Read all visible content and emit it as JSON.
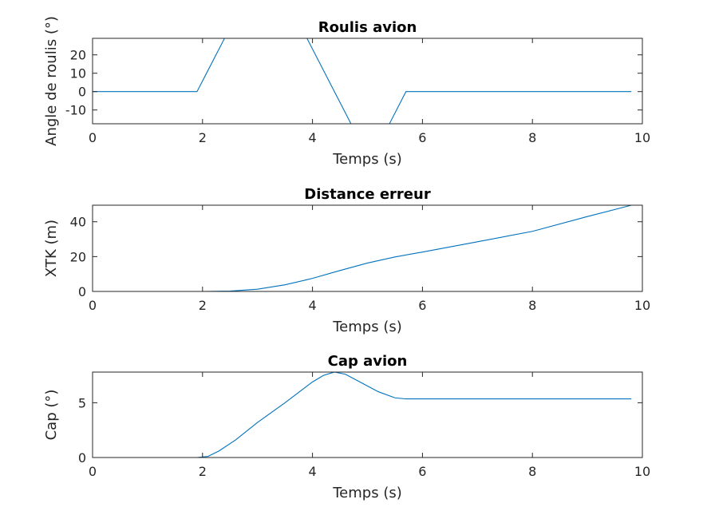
{
  "chart_data": [
    {
      "type": "line",
      "title": "Roulis avion",
      "xlabel": "Temps (s)",
      "ylabel": "Angle de roulis (°)",
      "xlim": [
        0,
        10
      ],
      "ylim": [
        -17.5,
        29
      ],
      "xticks": [
        "0",
        "2",
        "4",
        "6",
        "8",
        "10"
      ],
      "yticks": [
        "-10",
        "0",
        "10",
        "20"
      ],
      "grid": false,
      "color": "#0072bd",
      "series": [
        {
          "x": [
            0,
            1.9,
            2.4,
            3.9,
            4.7,
            5.4,
            5.7,
            9.8
          ],
          "y": [
            0,
            0,
            29,
            29,
            -17.5,
            -17.5,
            0,
            0
          ]
        }
      ]
    },
    {
      "type": "line",
      "title": "Distance erreur",
      "xlabel": "Temps (s)",
      "ylabel": "XTK (m)",
      "xlim": [
        0,
        10
      ],
      "ylim": [
        0,
        49.5
      ],
      "xticks": [
        "0",
        "2",
        "4",
        "6",
        "8",
        "10"
      ],
      "yticks": [
        "0",
        "20",
        "40"
      ],
      "grid": false,
      "color": "#0072bd",
      "series": [
        {
          "x": [
            0,
            2.0,
            2.5,
            3.0,
            3.5,
            4.0,
            4.5,
            5.0,
            5.5,
            6.0,
            7.0,
            8.0,
            9.0,
            9.8
          ],
          "y": [
            0,
            0,
            0.2,
            1.3,
            3.8,
            7.5,
            12.0,
            16.3,
            19.8,
            22.6,
            28.5,
            34.5,
            43.0,
            49.5
          ]
        }
      ]
    },
    {
      "type": "line",
      "title": "Cap avion",
      "xlabel": "Temps (s)",
      "ylabel": "Cap (°)",
      "xlim": [
        0,
        10
      ],
      "ylim": [
        0,
        7.8
      ],
      "xticks": [
        "0",
        "2",
        "4",
        "6",
        "8",
        "10"
      ],
      "yticks": [
        "0",
        "5"
      ],
      "grid": false,
      "color": "#0072bd",
      "series": [
        {
          "x": [
            0,
            1.9,
            2.1,
            2.3,
            2.6,
            3.0,
            3.5,
            4.0,
            4.2,
            4.4,
            4.6,
            4.9,
            5.2,
            5.5,
            5.7,
            9.8
          ],
          "y": [
            0,
            0,
            0.1,
            0.6,
            1.6,
            3.2,
            5.0,
            6.9,
            7.5,
            7.8,
            7.6,
            6.8,
            6.0,
            5.45,
            5.35,
            5.35
          ]
        }
      ]
    }
  ]
}
